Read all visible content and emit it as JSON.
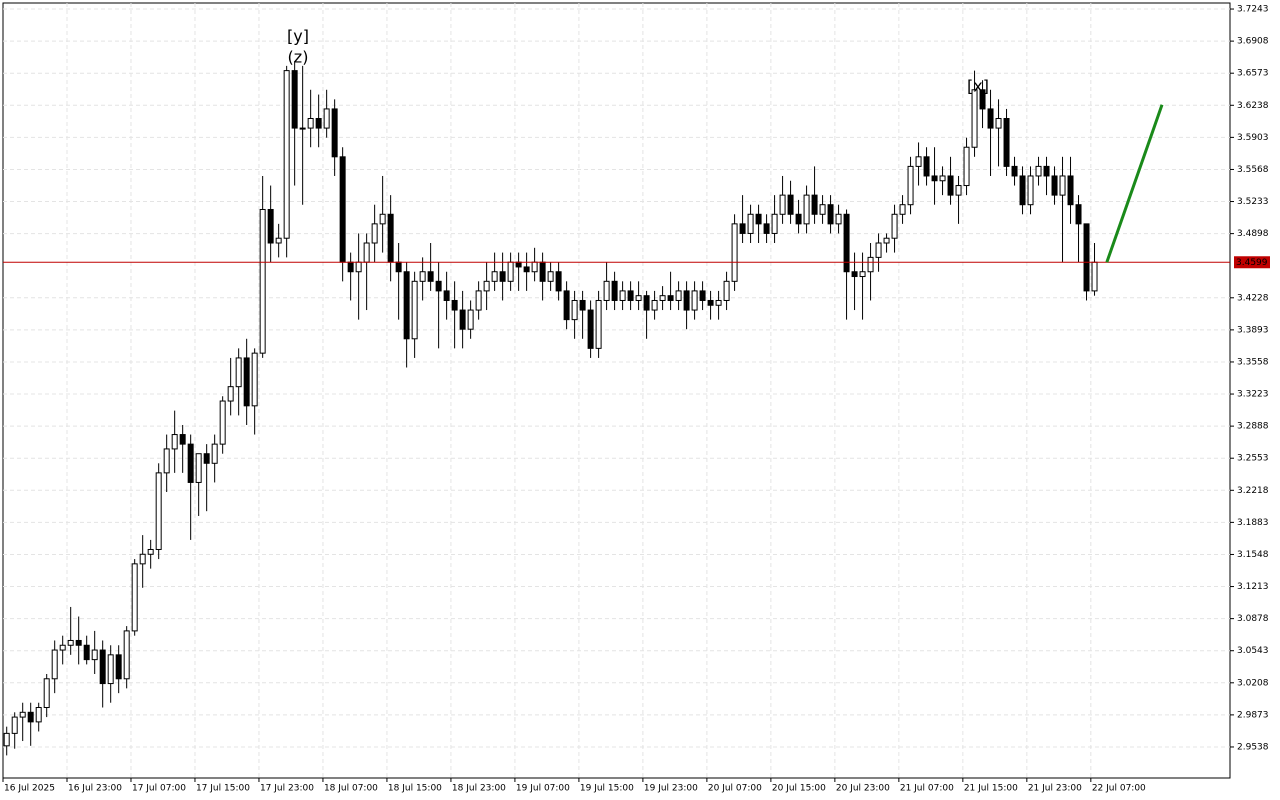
{
  "chart_data": {
    "type": "candlestick",
    "up_color": "#ffffff",
    "down_color": "#000000",
    "wick_color": "#000000",
    "current_price": 3.4599,
    "current_price_color": "#c00000",
    "projection": {
      "x": [
        137.6,
        144.5
      ],
      "y": [
        3.4599,
        3.6243
      ],
      "color": "#1a8a1a"
    },
    "annotations": [
      {
        "text": "[y]",
        "color": "#4caf50"
      },
      {
        "text": "(z)",
        "color": "#2222cc"
      },
      {
        "text": "[x]",
        "color": "#4caf50"
      }
    ],
    "xlim": [
      -0.4,
      153
    ],
    "ylim": [
      2.9214,
      3.7306
    ],
    "xticks": [
      {
        "value": -0.4,
        "label": "16 Jul 2025"
      },
      {
        "value": 7.6,
        "label": "16 Jul 23:00"
      },
      {
        "value": 15.6,
        "label": "17 Jul 07:00"
      },
      {
        "value": 23.6,
        "label": "17 Jul 15:00"
      },
      {
        "value": 31.6,
        "label": "17 Jul 23:00"
      },
      {
        "value": 39.6,
        "label": "18 Jul 07:00"
      },
      {
        "value": 47.6,
        "label": "18 Jul 15:00"
      },
      {
        "value": 55.6,
        "label": "18 Jul 23:00"
      },
      {
        "value": 63.6,
        "label": "19 Jul 07:00"
      },
      {
        "value": 71.6,
        "label": "19 Jul 15:00"
      },
      {
        "value": 79.6,
        "label": "19 Jul 23:00"
      },
      {
        "value": 87.6,
        "label": "20 Jul 07:00"
      },
      {
        "value": 95.6,
        "label": "20 Jul 15:00"
      },
      {
        "value": 103.6,
        "label": "20 Jul 23:00"
      },
      {
        "value": 111.6,
        "label": "21 Jul 07:00"
      },
      {
        "value": 119.6,
        "label": "21 Jul 15:00"
      },
      {
        "value": 127.6,
        "label": "21 Jul 23:00"
      },
      {
        "value": 135.6,
        "label": "22 Jul 07:00"
      }
    ],
    "yticks": [
      3.7243,
      3.6908,
      3.6573,
      3.6238,
      3.5903,
      3.5568,
      3.5233,
      3.4898,
      3.4228,
      3.3893,
      3.3558,
      3.3223,
      3.2888,
      3.2553,
      3.2218,
      3.1883,
      3.1548,
      3.1213,
      3.0878,
      3.0543,
      3.0208,
      2.9873,
      2.9538
    ],
    "grid": true,
    "ohlc": [
      [
        2.955,
        2.975,
        2.945,
        2.968
      ],
      [
        2.968,
        2.99,
        2.952,
        2.985
      ],
      [
        2.985,
        3.0,
        2.96,
        2.99
      ],
      [
        2.99,
        3.0,
        2.955,
        2.98
      ],
      [
        2.98,
        3.0,
        2.97,
        2.995
      ],
      [
        2.995,
        3.03,
        2.985,
        3.025
      ],
      [
        3.025,
        3.065,
        3.01,
        3.055
      ],
      [
        3.055,
        3.07,
        3.04,
        3.06
      ],
      [
        3.06,
        3.1,
        3.05,
        3.065
      ],
      [
        3.065,
        3.09,
        3.04,
        3.06
      ],
      [
        3.06,
        3.07,
        3.04,
        3.045
      ],
      [
        3.045,
        3.075,
        3.03,
        3.055
      ],
      [
        3.055,
        3.065,
        2.995,
        3.02
      ],
      [
        3.02,
        3.06,
        3.0,
        3.05
      ],
      [
        3.05,
        3.06,
        3.01,
        3.025
      ],
      [
        3.025,
        3.08,
        3.015,
        3.075
      ],
      [
        3.075,
        3.15,
        3.07,
        3.145
      ],
      [
        3.145,
        3.175,
        3.12,
        3.155
      ],
      [
        3.155,
        3.17,
        3.14,
        3.16
      ],
      [
        3.16,
        3.25,
        3.15,
        3.24
      ],
      [
        3.24,
        3.28,
        3.22,
        3.265
      ],
      [
        3.265,
        3.305,
        3.24,
        3.28
      ],
      [
        3.28,
        3.29,
        3.24,
        3.27
      ],
      [
        3.27,
        3.28,
        3.17,
        3.23
      ],
      [
        3.23,
        3.26,
        3.195,
        3.26
      ],
      [
        3.26,
        3.27,
        3.2,
        3.25
      ],
      [
        3.25,
        3.28,
        3.23,
        3.27
      ],
      [
        3.27,
        3.32,
        3.26,
        3.315
      ],
      [
        3.315,
        3.36,
        3.3,
        3.33
      ],
      [
        3.33,
        3.37,
        3.3,
        3.36
      ],
      [
        3.36,
        3.38,
        3.29,
        3.31
      ],
      [
        3.31,
        3.37,
        3.28,
        3.365
      ],
      [
        3.365,
        3.55,
        3.36,
        3.515
      ],
      [
        3.515,
        3.54,
        3.46,
        3.48
      ],
      [
        3.48,
        3.5,
        3.465,
        3.485
      ],
      [
        3.485,
        3.665,
        3.465,
        3.66
      ],
      [
        3.66,
        3.67,
        3.54,
        3.6
      ],
      [
        3.6,
        3.665,
        3.52,
        3.6
      ],
      [
        3.6,
        3.64,
        3.58,
        3.61
      ],
      [
        3.61,
        3.635,
        3.58,
        3.6
      ],
      [
        3.6,
        3.64,
        3.59,
        3.62
      ],
      [
        3.62,
        3.63,
        3.55,
        3.57
      ],
      [
        3.57,
        3.58,
        3.44,
        3.46
      ],
      [
        3.46,
        3.47,
        3.42,
        3.45
      ],
      [
        3.45,
        3.49,
        3.4,
        3.46
      ],
      [
        3.46,
        3.49,
        3.41,
        3.48
      ],
      [
        3.48,
        3.52,
        3.46,
        3.5
      ],
      [
        3.5,
        3.55,
        3.47,
        3.51
      ],
      [
        3.51,
        3.53,
        3.44,
        3.46
      ],
      [
        3.46,
        3.48,
        3.4,
        3.45
      ],
      [
        3.45,
        3.46,
        3.35,
        3.38
      ],
      [
        3.38,
        3.45,
        3.36,
        3.44
      ],
      [
        3.44,
        3.465,
        3.42,
        3.45
      ],
      [
        3.45,
        3.48,
        3.43,
        3.44
      ],
      [
        3.44,
        3.46,
        3.37,
        3.43
      ],
      [
        3.43,
        3.45,
        3.4,
        3.42
      ],
      [
        3.42,
        3.44,
        3.37,
        3.41
      ],
      [
        3.41,
        3.43,
        3.37,
        3.39
      ],
      [
        3.39,
        3.42,
        3.38,
        3.41
      ],
      [
        3.41,
        3.44,
        3.4,
        3.43
      ],
      [
        3.43,
        3.46,
        3.41,
        3.44
      ],
      [
        3.44,
        3.47,
        3.43,
        3.45
      ],
      [
        3.45,
        3.47,
        3.42,
        3.44
      ],
      [
        3.44,
        3.47,
        3.43,
        3.46
      ],
      [
        3.46,
        3.47,
        3.43,
        3.455
      ],
      [
        3.455,
        3.47,
        3.43,
        3.45
      ],
      [
        3.45,
        3.475,
        3.44,
        3.46
      ],
      [
        3.46,
        3.47,
        3.42,
        3.44
      ],
      [
        3.44,
        3.46,
        3.43,
        3.45
      ],
      [
        3.45,
        3.46,
        3.42,
        3.43
      ],
      [
        3.43,
        3.44,
        3.39,
        3.4
      ],
      [
        3.4,
        3.43,
        3.38,
        3.42
      ],
      [
        3.42,
        3.43,
        3.38,
        3.41
      ],
      [
        3.41,
        3.42,
        3.36,
        3.37
      ],
      [
        3.37,
        3.43,
        3.36,
        3.42
      ],
      [
        3.42,
        3.46,
        3.41,
        3.44
      ],
      [
        3.44,
        3.45,
        3.41,
        3.42
      ],
      [
        3.42,
        3.44,
        3.41,
        3.43
      ],
      [
        3.43,
        3.44,
        3.41,
        3.42
      ],
      [
        3.42,
        3.44,
        3.41,
        3.425
      ],
      [
        3.425,
        3.43,
        3.38,
        3.41
      ],
      [
        3.41,
        3.43,
        3.4,
        3.42
      ],
      [
        3.42,
        3.435,
        3.41,
        3.425
      ],
      [
        3.425,
        3.45,
        3.41,
        3.42
      ],
      [
        3.42,
        3.44,
        3.41,
        3.43
      ],
      [
        3.43,
        3.44,
        3.39,
        3.41
      ],
      [
        3.41,
        3.44,
        3.4,
        3.43
      ],
      [
        3.43,
        3.44,
        3.41,
        3.42
      ],
      [
        3.42,
        3.43,
        3.4,
        3.415
      ],
      [
        3.415,
        3.43,
        3.4,
        3.42
      ],
      [
        3.42,
        3.45,
        3.41,
        3.44
      ],
      [
        3.44,
        3.51,
        3.43,
        3.5
      ],
      [
        3.5,
        3.53,
        3.48,
        3.49
      ],
      [
        3.49,
        3.52,
        3.48,
        3.51
      ],
      [
        3.51,
        3.52,
        3.48,
        3.5
      ],
      [
        3.5,
        3.51,
        3.48,
        3.49
      ],
      [
        3.49,
        3.53,
        3.48,
        3.51
      ],
      [
        3.51,
        3.55,
        3.5,
        3.53
      ],
      [
        3.53,
        3.545,
        3.5,
        3.51
      ],
      [
        3.51,
        3.525,
        3.49,
        3.5
      ],
      [
        3.5,
        3.54,
        3.49,
        3.53
      ],
      [
        3.53,
        3.56,
        3.5,
        3.51
      ],
      [
        3.51,
        3.53,
        3.5,
        3.52
      ],
      [
        3.52,
        3.53,
        3.49,
        3.5
      ],
      [
        3.5,
        3.52,
        3.49,
        3.51
      ],
      [
        3.51,
        3.515,
        3.4,
        3.45
      ],
      [
        3.45,
        3.47,
        3.41,
        3.445
      ],
      [
        3.445,
        3.47,
        3.4,
        3.45
      ],
      [
        3.45,
        3.48,
        3.42,
        3.465
      ],
      [
        3.465,
        3.49,
        3.45,
        3.48
      ],
      [
        3.48,
        3.49,
        3.47,
        3.485
      ],
      [
        3.485,
        3.52,
        3.47,
        3.51
      ],
      [
        3.51,
        3.53,
        3.5,
        3.52
      ],
      [
        3.52,
        3.57,
        3.51,
        3.56
      ],
      [
        3.56,
        3.585,
        3.54,
        3.57
      ],
      [
        3.57,
        3.58,
        3.54,
        3.55
      ],
      [
        3.55,
        3.58,
        3.52,
        3.545
      ],
      [
        3.545,
        3.56,
        3.53,
        3.55
      ],
      [
        3.55,
        3.57,
        3.52,
        3.53
      ],
      [
        3.53,
        3.55,
        3.5,
        3.54
      ],
      [
        3.54,
        3.59,
        3.53,
        3.58
      ],
      [
        3.58,
        3.66,
        3.57,
        3.64
      ],
      [
        3.64,
        3.65,
        3.6,
        3.62
      ],
      [
        3.62,
        3.64,
        3.55,
        3.6
      ],
      [
        3.6,
        3.63,
        3.56,
        3.61
      ],
      [
        3.61,
        3.62,
        3.55,
        3.56
      ],
      [
        3.56,
        3.57,
        3.54,
        3.55
      ],
      [
        3.55,
        3.56,
        3.51,
        3.52
      ],
      [
        3.52,
        3.56,
        3.51,
        3.55
      ],
      [
        3.55,
        3.57,
        3.54,
        3.56
      ],
      [
        3.56,
        3.57,
        3.53,
        3.55
      ],
      [
        3.55,
        3.56,
        3.52,
        3.53
      ],
      [
        3.53,
        3.57,
        3.46,
        3.55
      ],
      [
        3.55,
        3.57,
        3.5,
        3.52
      ],
      [
        3.52,
        3.53,
        3.46,
        3.5
      ],
      [
        3.5,
        3.5,
        3.42,
        3.43
      ],
      [
        3.43,
        3.48,
        3.425,
        3.4599
      ]
    ]
  }
}
